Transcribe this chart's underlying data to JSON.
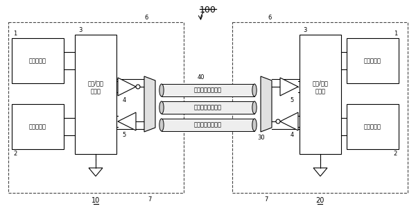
{
  "bg_color": "#ffffff",
  "title": "100",
  "label_10": "10",
  "label_20": "20",
  "label_40": "40",
  "label_30": "30",
  "label_7a": "7",
  "label_7b": "7",
  "label_6a": "6",
  "label_6b": "6",
  "label_3a": "3",
  "label_3b": "3",
  "label_4a": "4",
  "label_4b": "4",
  "label_5a": "5",
  "label_5b": "5",
  "label_1a": "1",
  "label_1b": "1",
  "label_2a": "2",
  "label_2b": "2",
  "text_power_block_a": "电源电路块",
  "text_func_block_a": "功能电路块",
  "text_io_block_a": "输入/输出\n电路块",
  "text_power_block_b": "电源电路块",
  "text_func_block_b": "功能电路块",
  "text_io_block_b": "输入/输出\n电路块",
  "text_cable1": "电源地对传输线路",
  "text_cable2": "差分信号传输线路",
  "text_cable3": "差分信号传输线路",
  "line_color": "#000000",
  "font_size": 6.0,
  "small_font": 5.5,
  "num_font": 6.0
}
